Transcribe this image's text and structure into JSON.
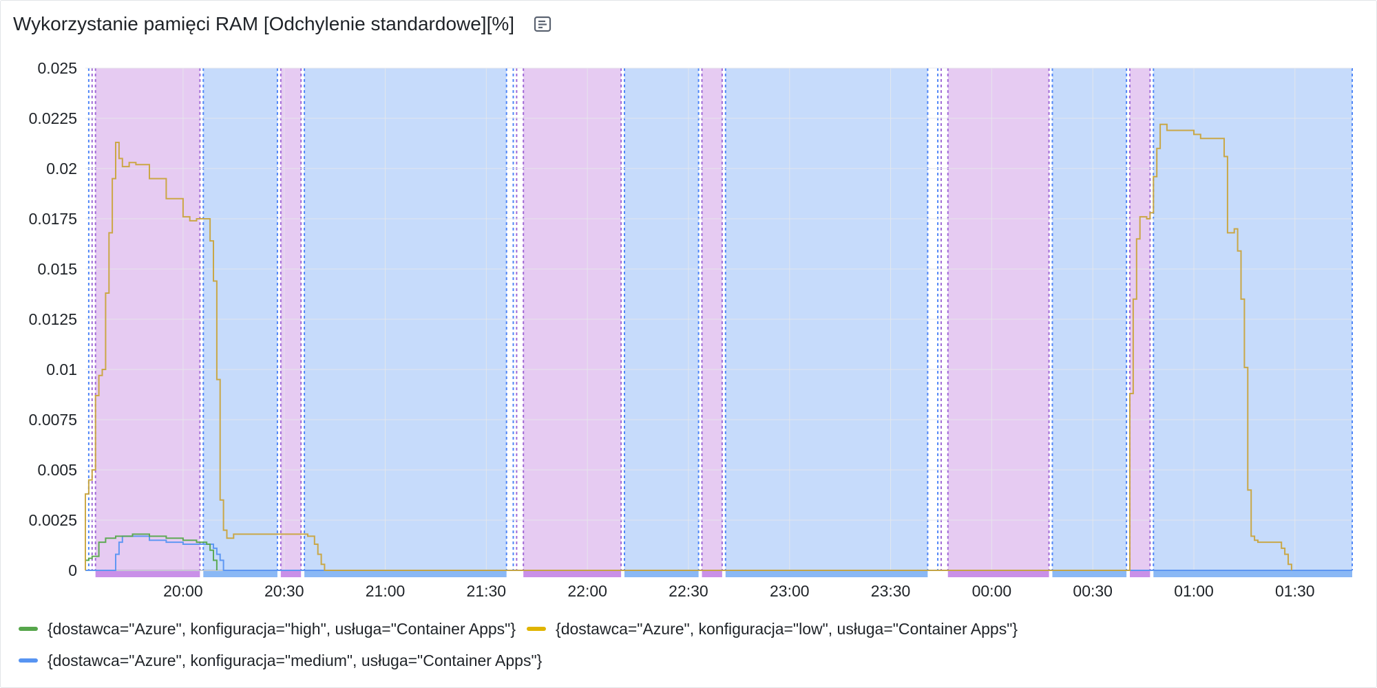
{
  "panel": {
    "title": "Wykorzystanie pamięci RAM [Odchylenie standardowe][%]",
    "info_icon": "document-icon"
  },
  "colors": {
    "high": "#56a64b",
    "low": "#e0b400",
    "medium": "#5794f2",
    "low_high_overlap": "#b5a34a",
    "low_medium_overlap": "#e8a04a",
    "region_purple": "#e6cbf2",
    "region_blue": "#c6dbfb",
    "strip_purple": "#c990e8",
    "strip_blue": "#8ab8f5",
    "dash_purple": "#a06ad6",
    "dash_blue": "#4f86f7",
    "grid": "#e6e8eb"
  },
  "legend": [
    {
      "key": "high",
      "label": "{dostawca=\"Azure\", konfiguracja=\"high\", usługa=\"Container Apps\"}"
    },
    {
      "key": "low",
      "label": "{dostawca=\"Azure\", konfiguracja=\"low\", usługa=\"Container Apps\"}"
    },
    {
      "key": "medium",
      "label": "{dostawca=\"Azure\", konfiguracja=\"medium\", usługa=\"Container Apps\"}"
    }
  ],
  "chart_data": {
    "type": "line",
    "title": "Wykorzystanie pamięci RAM [Odchylenie standardowe][%]",
    "xlabel": "",
    "ylabel": "",
    "xlim": [
      "19:31",
      "01:47"
    ],
    "ylim": [
      0,
      0.025
    ],
    "grid": true,
    "legend_position": "bottom",
    "x_ticks": [
      "20:00",
      "20:30",
      "21:00",
      "21:30",
      "22:00",
      "22:30",
      "23:00",
      "23:30",
      "00:00",
      "00:30",
      "01:00",
      "01:30"
    ],
    "y_ticks": [
      "0",
      "0.0025",
      "0.005",
      "0.0075",
      "0.01",
      "0.0125",
      "0.015",
      "0.0175",
      "0.02",
      "0.0225",
      "0.025"
    ],
    "regions": [
      {
        "kind": "purple",
        "start": "19:34",
        "end": "20:05"
      },
      {
        "kind": "blue",
        "start": "20:06",
        "end": "20:28"
      },
      {
        "kind": "purple",
        "start": "20:29",
        "end": "20:35"
      },
      {
        "kind": "blue",
        "start": "20:36",
        "end": "21:36"
      },
      {
        "kind": "purple",
        "start": "21:41",
        "end": "22:10"
      },
      {
        "kind": "blue",
        "start": "22:11",
        "end": "22:33"
      },
      {
        "kind": "purple",
        "start": "22:34",
        "end": "22:40"
      },
      {
        "kind": "blue",
        "start": "22:41",
        "end": "23:41"
      },
      {
        "kind": "purple",
        "start": "23:47",
        "end": "00:17"
      },
      {
        "kind": "blue",
        "start": "00:18",
        "end": "00:40"
      },
      {
        "kind": "purple",
        "start": "00:41",
        "end": "00:47"
      },
      {
        "kind": "blue",
        "start": "00:48",
        "end": "01:47"
      }
    ],
    "markers": [
      {
        "kind": "blue",
        "at": "19:32"
      },
      {
        "kind": "purple",
        "at": "19:33"
      },
      {
        "kind": "blue",
        "at": "21:38"
      },
      {
        "kind": "purple",
        "at": "21:39"
      },
      {
        "kind": "blue",
        "at": "23:44"
      },
      {
        "kind": "purple",
        "at": "23:45"
      }
    ],
    "series": [
      {
        "name": "{dostawca=\"Azure\", konfiguracja=\"high\", usługa=\"Container Apps\"}",
        "key": "high",
        "points": [
          [
            "19:31",
            0.0005
          ],
          [
            "19:32",
            0.0006
          ],
          [
            "19:33",
            0.0007
          ],
          [
            "19:35",
            0.0014
          ],
          [
            "19:37",
            0.0016
          ],
          [
            "19:40",
            0.0017
          ],
          [
            "19:45",
            0.0018
          ],
          [
            "19:50",
            0.0017
          ],
          [
            "19:55",
            0.0016
          ],
          [
            "20:00",
            0.0015
          ],
          [
            "20:04",
            0.0014
          ],
          [
            "20:07",
            0.0013
          ],
          [
            "20:08",
            0.001
          ],
          [
            "20:09",
            0.0005
          ],
          [
            "20:10",
            0.0
          ]
        ]
      },
      {
        "name": "{dostawca=\"Azure\", konfiguracja=\"low\", usługa=\"Container Apps\"}",
        "key": "low",
        "points": [
          [
            "19:31",
            0.0
          ],
          [
            "19:31",
            0.0038
          ],
          [
            "19:32",
            0.0045
          ],
          [
            "19:33",
            0.005
          ],
          [
            "19:34",
            0.0087
          ],
          [
            "19:35",
            0.0097
          ],
          [
            "19:36",
            0.01
          ],
          [
            "19:37",
            0.0138
          ],
          [
            "19:38",
            0.0168
          ],
          [
            "19:39",
            0.0195
          ],
          [
            "19:40",
            0.0213
          ],
          [
            "19:41",
            0.0205
          ],
          [
            "19:42",
            0.0201
          ],
          [
            "19:44",
            0.0203
          ],
          [
            "19:46",
            0.0202
          ],
          [
            "19:50",
            0.0195
          ],
          [
            "19:55",
            0.0185
          ],
          [
            "20:00",
            0.0176
          ],
          [
            "20:02",
            0.0174
          ],
          [
            "20:04",
            0.0175
          ],
          [
            "20:07",
            0.0175
          ],
          [
            "20:08",
            0.0164
          ],
          [
            "20:09",
            0.0144
          ],
          [
            "20:10",
            0.0095
          ],
          [
            "20:11",
            0.0035
          ],
          [
            "20:12",
            0.002
          ],
          [
            "20:13",
            0.0016
          ],
          [
            "20:15",
            0.0018
          ],
          [
            "20:35",
            0.0018
          ],
          [
            "20:37",
            0.0017
          ],
          [
            "20:39",
            0.0013
          ],
          [
            "20:40",
            0.0008
          ],
          [
            "20:41",
            0.0003
          ],
          [
            "20:42",
            0.0
          ],
          [
            "00:40",
            0.0
          ],
          [
            "00:41",
            0.0088
          ],
          [
            "00:42",
            0.0135
          ],
          [
            "00:43",
            0.0165
          ],
          [
            "00:44",
            0.0176
          ],
          [
            "00:46",
            0.0175
          ],
          [
            "00:47",
            0.0178
          ],
          [
            "00:48",
            0.0196
          ],
          [
            "00:49",
            0.021
          ],
          [
            "00:50",
            0.0222
          ],
          [
            "00:52",
            0.0219
          ],
          [
            "00:58",
            0.0219
          ],
          [
            "01:00",
            0.0217
          ],
          [
            "01:02",
            0.0215
          ],
          [
            "01:08",
            0.0215
          ],
          [
            "01:09",
            0.0206
          ],
          [
            "01:10",
            0.0168
          ],
          [
            "01:12",
            0.017
          ],
          [
            "01:13",
            0.0159
          ],
          [
            "01:14",
            0.0135
          ],
          [
            "01:15",
            0.0101
          ],
          [
            "01:16",
            0.004
          ],
          [
            "01:17",
            0.0017
          ],
          [
            "01:18",
            0.0015
          ],
          [
            "01:19",
            0.0014
          ],
          [
            "01:25",
            0.0014
          ],
          [
            "01:26",
            0.0011
          ],
          [
            "01:27",
            0.0008
          ],
          [
            "01:28",
            0.0003
          ],
          [
            "01:29",
            0.0
          ]
        ]
      },
      {
        "name": "{dostawca=\"Azure\", konfiguracja=\"medium\", usługa=\"Container Apps\"}",
        "key": "medium",
        "points": [
          [
            "19:31",
            0.0
          ],
          [
            "19:39",
            0.0
          ],
          [
            "19:40",
            0.0008
          ],
          [
            "19:41",
            0.0014
          ],
          [
            "19:42",
            0.0017
          ],
          [
            "19:45",
            0.0017
          ],
          [
            "19:50",
            0.0015
          ],
          [
            "19:55",
            0.0014
          ],
          [
            "20:00",
            0.0013
          ],
          [
            "20:05",
            0.0013
          ],
          [
            "20:08",
            0.0013
          ],
          [
            "20:09",
            0.0011
          ],
          [
            "20:10",
            0.0008
          ],
          [
            "20:11",
            0.0005
          ],
          [
            "20:12",
            0.0
          ],
          [
            "01:47",
            0.0
          ]
        ]
      }
    ]
  }
}
